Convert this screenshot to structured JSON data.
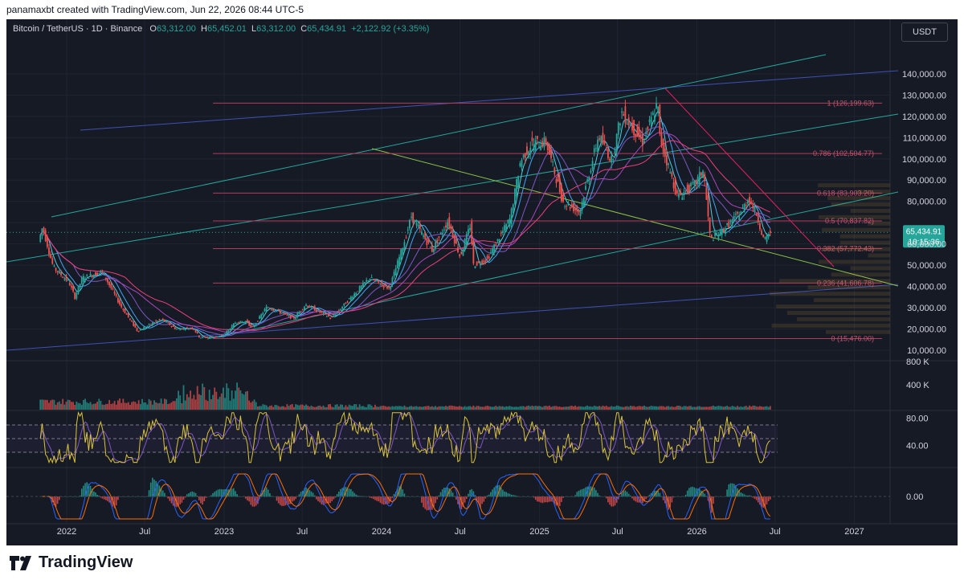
{
  "header": {
    "caption": "panamaxbt created with TradingView.com, Jun 22, 2026 08:44 UTC-5"
  },
  "legend": {
    "symbol": "Bitcoin / TetherUS · 1D · Binance",
    "o_label": "O",
    "o": "63,312.00",
    "h_label": "H",
    "h": "65,452.01",
    "l_label": "L",
    "l": "63,312.00",
    "c_label": "C",
    "c": "65,434.91",
    "change": "+2,122.92 (+3.35%)"
  },
  "currency_button": "USDT",
  "footer": {
    "brand": "TradingView"
  },
  "colors": {
    "background": "#161a25",
    "grid": "#1f2433",
    "up": "#26a69a",
    "down": "#ef5350",
    "fib": "#b23c5a",
    "price_badge": "#26a69a",
    "rsi": "#d9c43a",
    "rsi_ma": "#7e57c2",
    "macd": "#2962ff",
    "signal": "#ff6d00"
  },
  "chart_data": {
    "type": "candlestick",
    "x_ticks": [
      "2022",
      "Jul",
      "2023",
      "Jul",
      "2024",
      "Jul",
      "2025",
      "Jul",
      "2026",
      "Jul",
      "2027"
    ],
    "price_ticks": [
      "140,000.00",
      "130,000.00",
      "120,000.00",
      "110,000.00",
      "100,000.00",
      "90,000.00",
      "80,000.00",
      "70,000.00",
      "60,000.00",
      "50,000.00",
      "40,000.00",
      "30,000.00",
      "20,000.00",
      "10,000.00"
    ],
    "ylim": [
      10000,
      146000
    ],
    "last_price": "65,434.91",
    "countdown": "10:15:36",
    "fib_levels": [
      {
        "ratio": 1,
        "price": 126199.63,
        "label": "1 (126,199.63)"
      },
      {
        "ratio": 0.786,
        "price": 102504.77,
        "label": "0.786 (102,504.77)"
      },
      {
        "ratio": 0.618,
        "price": 83903.2,
        "label": "0.618 (83,903.20)"
      },
      {
        "ratio": 0.5,
        "price": 70837.82,
        "label": "0.5 (70,837.82)"
      },
      {
        "ratio": 0.382,
        "price": 57772.43,
        "label": "0.382 (57,772.43)"
      },
      {
        "ratio": 0.236,
        "price": 41606.78,
        "label": "0.236 (41,606.78)"
      },
      {
        "ratio": 0,
        "price": 15476.0,
        "label": "0 (15,476.00)"
      }
    ],
    "price_path": [
      [
        "2021-11-01",
        61000
      ],
      [
        "2021-11-10",
        68000
      ],
      [
        "2021-12-05",
        49000
      ],
      [
        "2022-01-10",
        42000
      ],
      [
        "2022-01-24",
        35000
      ],
      [
        "2022-02-10",
        44000
      ],
      [
        "2022-03-28",
        47000
      ],
      [
        "2022-05-10",
        31000
      ],
      [
        "2022-06-18",
        19000
      ],
      [
        "2022-07-30",
        23500
      ],
      [
        "2022-08-15",
        24400
      ],
      [
        "2022-09-15",
        20000
      ],
      [
        "2022-10-25",
        20500
      ],
      [
        "2022-11-09",
        16000
      ],
      [
        "2022-12-31",
        16500
      ],
      [
        "2023-01-31",
        23000
      ],
      [
        "2023-02-28",
        23500
      ],
      [
        "2023-03-10",
        20000
      ],
      [
        "2023-04-14",
        30500
      ],
      [
        "2023-06-15",
        25000
      ],
      [
        "2023-07-13",
        31500
      ],
      [
        "2023-09-11",
        25000
      ],
      [
        "2023-10-24",
        34500
      ],
      [
        "2023-12-08",
        44000
      ],
      [
        "2024-01-23",
        39000
      ],
      [
        "2024-02-28",
        62000
      ],
      [
        "2024-03-14",
        73000
      ],
      [
        "2024-05-01",
        57000
      ],
      [
        "2024-06-07",
        71000
      ],
      [
        "2024-07-05",
        54000
      ],
      [
        "2024-07-29",
        69000
      ],
      [
        "2024-08-05",
        50000
      ],
      [
        "2024-09-06",
        53000
      ],
      [
        "2024-10-29",
        72000
      ],
      [
        "2024-11-22",
        99000
      ],
      [
        "2024-12-17",
        107000
      ],
      [
        "2025-01-20",
        108000
      ],
      [
        "2025-02-28",
        80000
      ],
      [
        "2025-04-08",
        75000
      ],
      [
        "2025-05-22",
        111000
      ],
      [
        "2025-06-22",
        99000
      ],
      [
        "2025-07-14",
        122000
      ],
      [
        "2025-09-01",
        108000
      ],
      [
        "2025-10-06",
        126000
      ],
      [
        "2025-10-11",
        110000
      ],
      [
        "2025-11-21",
        82000
      ],
      [
        "2025-12-31",
        88000
      ],
      [
        "2026-01-20",
        95000
      ],
      [
        "2026-02-05",
        62000
      ],
      [
        "2026-03-10",
        67000
      ],
      [
        "2026-04-20",
        76000
      ],
      [
        "2026-05-05",
        82000
      ],
      [
        "2026-05-25",
        73000
      ],
      [
        "2026-06-10",
        61000
      ],
      [
        "2026-06-22",
        65435
      ]
    ],
    "volume_ticks": [
      "800 K",
      "400 K"
    ],
    "rsi_ticks": [
      "80.00",
      "40.00"
    ],
    "macd_ticks": [
      "0.00"
    ]
  }
}
